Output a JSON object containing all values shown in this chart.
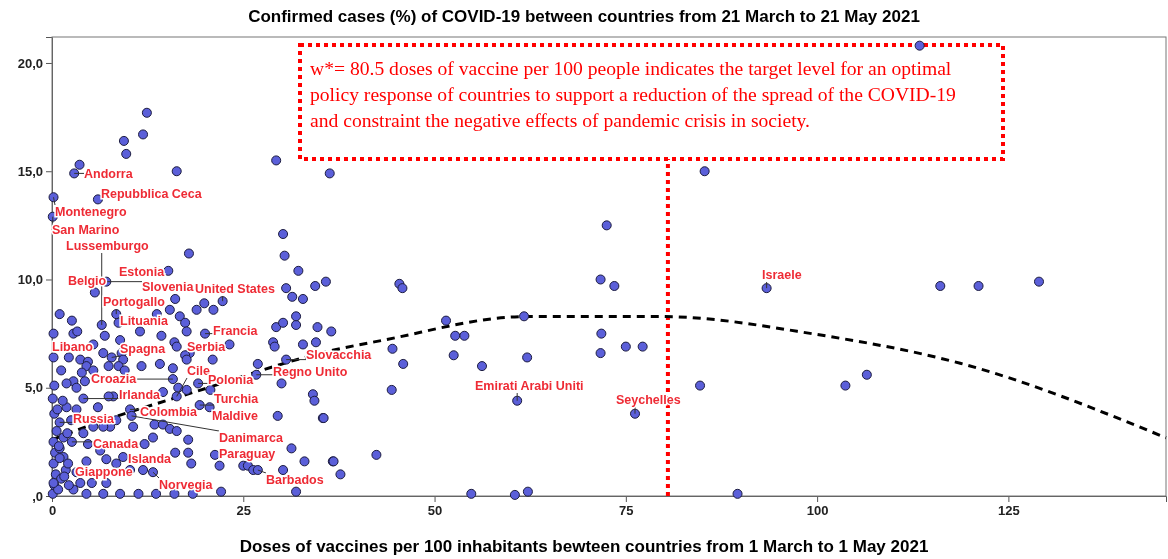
{
  "chart_data": {
    "type": "scatter",
    "title": "Confirmed cases (%) of COVID-19 between countries from 21 March to 21 May 2021",
    "xlabel": "Doses of vaccines per 100 inhabitants bewteen countries from 1 March to  1 May 2021",
    "xlim": [
      0,
      145.6
    ],
    "ylim": [
      0,
      21.2
    ],
    "xticks": [
      0,
      25,
      50,
      75,
      100,
      125
    ],
    "yticks": [
      {
        "value": 0,
        "label": ",0"
      },
      {
        "value": 5,
        "label": "5,0"
      },
      {
        "value": 10,
        "label": "10,0"
      },
      {
        "value": 15,
        "label": "15,0"
      },
      {
        "value": 20,
        "label": "20,0"
      }
    ],
    "grid": false,
    "marker": "circle",
    "series": [
      {
        "color": "#5b5fd9",
        "x": [
          12.4,
          11.9,
          9.4,
          9.7,
          3.6,
          2.9,
          16.3,
          29.3,
          36.3,
          0.2,
          6.0,
          0.1,
          30.2,
          17.9,
          30.4,
          32.2,
          15.2,
          7.1,
          5.6,
          30.6,
          34.4,
          35.8,
          31.4,
          32.8,
          1.0,
          2.6,
          2.8,
          3.3,
          0.2,
          6.5,
          8.4,
          8.7,
          6.9,
          11.5,
          13.7,
          14.3,
          15.4,
          16.1,
          16.7,
          17.4,
          17.6,
          18.9,
          19.9,
          21.1,
          22.3,
          20.0,
          16.0,
          16.3,
          23.2,
          18.0,
          17.4,
          17.6,
          21.0,
          28.9,
          29.1,
          29.3,
          30.2,
          31.9,
          31.9,
          32.8,
          34.7,
          34.5,
          36.5,
          30.6,
          26.9,
          26.7,
          30.0,
          34.1,
          34.3,
          35.4,
          29.5,
          0.2,
          3.7,
          4.7,
          4.5,
          3.9,
          2.8,
          4.3,
          1.9,
          3.2,
          5.4,
          6.7,
          7.8,
          9.1,
          9.3,
          8.9,
          5.4,
          7.4,
          8.7,
          9.5,
          11.7,
          14.1,
          15.8,
          15.8,
          19.1,
          20.7,
          17.6,
          16.5,
          16.3,
          14.5,
          8.0,
          7.4,
          4.1,
          6.0,
          3.2,
          1.9,
          10.2,
          10.4,
          10.6,
          19.3,
          20.6,
          13.4,
          14.5,
          15.4,
          16.3,
          17.8,
          13.2,
          8.4,
          7.6,
          6.7,
          5.4,
          4.1,
          1.5,
          1.0,
          2.6,
          4.7,
          6.3,
          12.1,
          16.1,
          17.8,
          21.3,
          31.3,
          18.2,
          21.9,
          25.0,
          25.6,
          26.3,
          26.9,
          30.2,
          33.0,
          36.7,
          31.9,
          22.1,
          13.2,
          11.9,
          10.2,
          9.3,
          8.4,
          7.1,
          4.5,
          3.2,
          5.2,
          7.1,
          8.9,
          11.3,
          13.6,
          16.0,
          18.4,
          6.7,
          4.5,
          2.8,
          0.1,
          0.3,
          0.5,
          0.2,
          0.8,
          1.2,
          0.4,
          1.5,
          0.2,
          0.6,
          1.8,
          2.2,
          0.3,
          0.1,
          1.4,
          2.5,
          1.0,
          2.0,
          0.3,
          1.2,
          2.2,
          1.0,
          2.1,
          3.7,
          0.7,
          1.6,
          0.2,
          0.9,
          45.4,
          45.8,
          51.5,
          52.7,
          53.9,
          61.7,
          44.5,
          52.5,
          45.9,
          56.2,
          62.1,
          44.4,
          42.4,
          37.7,
          36.8,
          35.5,
          54.8,
          60.5,
          62.2,
          72.5,
          71.7,
          73.5,
          71.8,
          71.7,
          75.0,
          77.2,
          85.3,
          116.1,
          121.1,
          129.0,
          84.7,
          103.7,
          106.5,
          89.6,
          113.4,
          60.8,
          76.2,
          93.4
        ],
        "values": [
          17.7,
          16.7,
          16.4,
          15.8,
          15.3,
          14.9,
          15.0,
          15.5,
          14.9,
          13.8,
          13.7,
          12.9,
          12.1,
          11.2,
          11.1,
          10.4,
          10.4,
          9.9,
          9.4,
          9.6,
          9.7,
          9.9,
          9.2,
          9.1,
          8.4,
          8.1,
          7.5,
          7.6,
          7.5,
          7.9,
          8.4,
          8.0,
          7.4,
          7.6,
          8.4,
          7.4,
          8.6,
          9.1,
          8.3,
          8.0,
          7.6,
          8.6,
          8.9,
          8.6,
          9.0,
          7.5,
          7.1,
          6.9,
          7.0,
          6.6,
          6.5,
          6.3,
          6.3,
          7.1,
          6.9,
          7.8,
          8.0,
          7.9,
          8.3,
          7.0,
          7.8,
          7.1,
          7.6,
          6.3,
          6.1,
          5.6,
          5.2,
          4.7,
          4.4,
          3.6,
          3.7,
          6.4,
          6.3,
          6.2,
          6.0,
          5.7,
          5.3,
          5.3,
          5.2,
          5.0,
          7.0,
          6.6,
          6.4,
          6.6,
          6.3,
          7.2,
          5.8,
          6.0,
          6.0,
          5.8,
          6.0,
          6.1,
          5.9,
          5.4,
          5.2,
          4.9,
          4.9,
          5.0,
          4.6,
          4.8,
          4.6,
          4.6,
          4.5,
          4.1,
          4.0,
          4.1,
          4.0,
          3.7,
          3.2,
          4.2,
          4.1,
          3.3,
          3.3,
          3.1,
          3.0,
          2.6,
          2.7,
          3.5,
          3.2,
          3.2,
          3.2,
          2.9,
          2.7,
          3.4,
          2.5,
          2.4,
          2.1,
          2.4,
          2.0,
          2.0,
          1.9,
          2.2,
          1.5,
          1.4,
          1.4,
          1.4,
          1.2,
          1.2,
          1.2,
          1.6,
          1.6,
          0.2,
          0.2,
          1.1,
          1.2,
          1.2,
          1.8,
          1.5,
          1.7,
          1.6,
          1.1,
          0.6,
          0.6,
          0.1,
          0.1,
          0.1,
          0.1,
          0.1,
          0.1,
          0.1,
          0.3,
          0.1,
          0.5,
          1.0,
          1.5,
          0.3,
          0.8,
          2.0,
          1.8,
          2.5,
          3.0,
          1.2,
          0.5,
          3.8,
          4.5,
          4.4,
          3.5,
          2.2,
          2.9,
          5.1,
          5.8,
          6.4,
          1.75,
          1.5,
          0.6,
          4.0,
          0.9,
          0.6,
          2.3,
          9.8,
          9.6,
          8.1,
          7.4,
          7.4,
          8.3,
          6.8,
          6.5,
          6.1,
          6.0,
          6.4,
          4.9,
          1.9,
          1.0,
          1.6,
          3.6,
          0.1,
          0.05,
          0.2,
          12.5,
          10.0,
          9.7,
          7.5,
          6.6,
          6.9,
          6.9,
          15.0,
          9.7,
          9.7,
          9.9,
          5.1,
          5.1,
          5.6,
          0.1,
          20.8,
          4.4,
          3.8,
          9.6
        ]
      },
      {
        "type": "line",
        "color": "#000000",
        "line_style": "dashed",
        "marker": "none",
        "x": [
          0,
          2.1,
          19.3,
          36.7,
          43.2,
          62,
          79.5,
          99.8,
          118.7,
          145.6
        ],
        "values": [
          2.6,
          2.89,
          4.88,
          6.73,
          7.19,
          8.29,
          8.29,
          7.47,
          6.13,
          2.69
        ]
      }
    ],
    "ref_lines": [
      {
        "axis": "x",
        "value": 80.5,
        "color": "#ff0000",
        "line_style": "dotted",
        "label": "w*= 80.5 doses of vaccine per 100 people  indicates the target level for an optimal policy response of countries to support a reduction of the spread of the COVID-19 and constraint the negative effects of pandemic crisis in society."
      }
    ],
    "annotations": [
      {
        "text": "Andorra",
        "x": 2.9,
        "y": 14.9
      },
      {
        "text": "Repubblica Ceca",
        "x": 6.0,
        "y": 13.7
      },
      {
        "text": "Montenegro",
        "x": 0.2,
        "y": 13.8
      },
      {
        "text": "San Marino",
        "x": 0.1,
        "y": 12.9
      },
      {
        "text": "Lussemburgo",
        "x": 6.5,
        "y": 7.9
      },
      {
        "text": "Belgio",
        "x": 5.6,
        "y": 9.4
      },
      {
        "text": "Estonia",
        "x": 15.2,
        "y": 10.4
      },
      {
        "text": "Slovenia",
        "x": 7.1,
        "y": 9.9
      },
      {
        "text": "United States",
        "x": 22.3,
        "y": 9.0
      },
      {
        "text": "Portogallo",
        "x": 8.4,
        "y": 8.4
      },
      {
        "text": "Lituania",
        "x": 8.7,
        "y": 8.0
      },
      {
        "text": "Francia",
        "x": 20.0,
        "y": 7.5
      },
      {
        "text": "Libano",
        "x": 0.2,
        "y": 6.4
      },
      {
        "text": "Spagna",
        "x": 7.8,
        "y": 6.4
      },
      {
        "text": "Serbia",
        "x": 23.2,
        "y": 7.0
      },
      {
        "text": "Slovacchia",
        "x": 30.6,
        "y": 6.3
      },
      {
        "text": "Regno Unito",
        "x": 26.7,
        "y": 5.6
      },
      {
        "text": "Cile",
        "x": 16.3,
        "y": 4.6
      },
      {
        "text": "Croazia",
        "x": 15.8,
        "y": 5.4
      },
      {
        "text": "Polonia",
        "x": 19.1,
        "y": 5.2
      },
      {
        "text": "Irlanda",
        "x": 4.1,
        "y": 4.5
      },
      {
        "text": "Turchia",
        "x": 19.3,
        "y": 4.2
      },
      {
        "text": "Colombia",
        "x": 10.2,
        "y": 4.0
      },
      {
        "text": "Maldive",
        "x": 20.6,
        "y": 4.1
      },
      {
        "text": "Russia",
        "x": 1.0,
        "y": 3.4
      },
      {
        "text": "Danimarca",
        "x": 10.4,
        "y": 3.7
      },
      {
        "text": "Canada",
        "x": 2.6,
        "y": 2.5
      },
      {
        "text": "Paraguay",
        "x": 21.3,
        "y": 1.9
      },
      {
        "text": "Islanda",
        "x": 9.3,
        "y": 1.8
      },
      {
        "text": "Giappone",
        "x": 3.2,
        "y": 1.1
      },
      {
        "text": "Barbados",
        "x": 26.9,
        "y": 1.2
      },
      {
        "text": "Norvegia",
        "x": 13.2,
        "y": 1.1
      },
      {
        "text": "Emirati Arabi Uniti",
        "x": 60.8,
        "y": 4.4
      },
      {
        "text": "Seychelles",
        "x": 76.2,
        "y": 3.8
      },
      {
        "text": "Israele",
        "x": 93.4,
        "y": 9.6
      }
    ]
  }
}
